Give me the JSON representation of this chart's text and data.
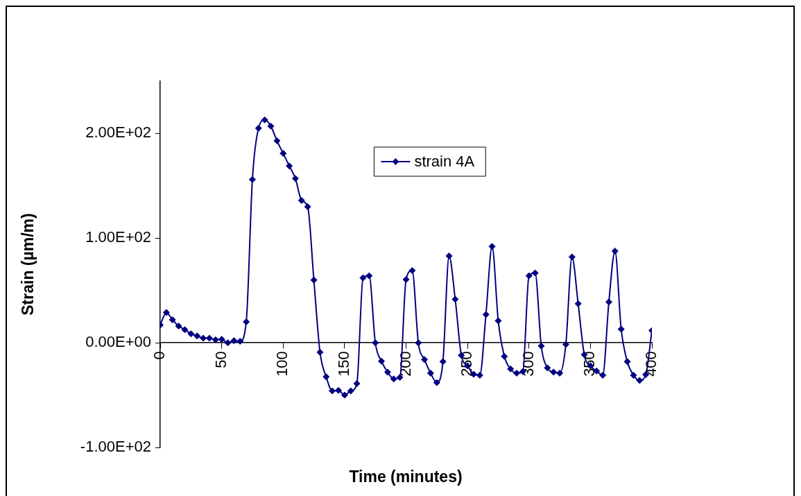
{
  "chart_data": {
    "type": "line",
    "xlabel": "Time (minutes)",
    "ylabel": "Strain (µm/m)",
    "x": [
      0,
      5,
      10,
      15,
      20,
      25,
      30,
      35,
      40,
      45,
      50,
      55,
      60,
      65,
      70,
      75,
      80,
      85,
      90,
      95,
      100,
      105,
      110,
      115,
      120,
      125,
      130,
      135,
      140,
      145,
      150,
      155,
      160,
      165,
      170,
      175,
      180,
      185,
      190,
      195,
      200,
      205,
      210,
      215,
      220,
      225,
      230,
      235,
      240,
      245,
      250,
      255,
      260,
      265,
      270,
      275,
      280,
      285,
      290,
      295,
      300,
      305,
      310,
      315,
      320,
      325,
      330,
      335,
      340,
      345,
      350,
      355,
      360,
      365,
      370,
      375,
      380,
      385,
      390,
      395,
      400
    ],
    "series": [
      {
        "name": "strain 4A",
        "color": "#000080",
        "values": [
          17,
          29,
          22,
          16,
          12.5,
          8.6,
          6.6,
          4.4,
          4.4,
          2.9,
          3.3,
          0,
          2,
          1.5,
          20,
          156,
          205,
          213,
          207,
          193,
          181,
          169,
          157,
          136,
          130,
          60,
          -9,
          -32.5,
          -46,
          -45.5,
          -50,
          -46,
          -39,
          62,
          64,
          0,
          -17.6,
          -28,
          -34.5,
          -33,
          60.5,
          69,
          0,
          -16,
          -29,
          -38,
          -18,
          83,
          41.6,
          -12,
          -22,
          -30,
          -31,
          27,
          92,
          21,
          -13,
          -25,
          -29,
          -27.5,
          64,
          66.7,
          -3,
          -24,
          -28,
          -29,
          -1.5,
          82,
          37.4,
          -11.4,
          -22,
          -27,
          -31,
          39,
          87.6,
          13,
          -18,
          -31,
          -36,
          -30.4,
          11.7
        ]
      }
    ],
    "xlim": [
      0,
      400
    ],
    "xticks": [
      0,
      50,
      100,
      150,
      200,
      250,
      300,
      350,
      400
    ],
    "ylim": [
      -100,
      250
    ],
    "yticks": [
      {
        "value": -100,
        "label": "-1.00E+02"
      },
      {
        "value": 0,
        "label": "0.00E+00"
      },
      {
        "value": 100,
        "label": "1.00E+02"
      },
      {
        "value": 200,
        "label": "2.00E+02"
      }
    ],
    "grid": false,
    "legend": "top right",
    "marker": "diamond",
    "line_style": "solid"
  }
}
